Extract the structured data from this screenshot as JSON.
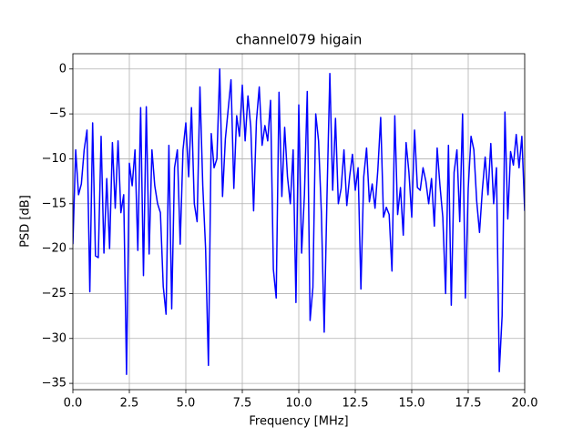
{
  "chart_data": {
    "type": "line",
    "title": "channel079 higain",
    "xlabel": "Frequency [MHz]",
    "ylabel": "PSD [dB]",
    "x": [
      0,
      0.125,
      0.25,
      0.375,
      0.5,
      0.625,
      0.75,
      0.875,
      1,
      1.125,
      1.25,
      1.375,
      1.5,
      1.625,
      1.75,
      1.875,
      2,
      2.125,
      2.25,
      2.375,
      2.5,
      2.625,
      2.75,
      2.875,
      3,
      3.125,
      3.25,
      3.375,
      3.5,
      3.625,
      3.75,
      3.875,
      4,
      4.125,
      4.25,
      4.375,
      4.5,
      4.625,
      4.75,
      4.875,
      5,
      5.125,
      5.25,
      5.375,
      5.5,
      5.625,
      5.75,
      5.875,
      6,
      6.125,
      6.25,
      6.375,
      6.5,
      6.625,
      6.75,
      6.875,
      7,
      7.125,
      7.25,
      7.375,
      7.5,
      7.625,
      7.75,
      7.875,
      8,
      8.125,
      8.25,
      8.375,
      8.5,
      8.625,
      8.75,
      8.875,
      9,
      9.125,
      9.25,
      9.375,
      9.5,
      9.625,
      9.75,
      9.875,
      10,
      10.125,
      10.25,
      10.375,
      10.5,
      10.625,
      10.75,
      10.875,
      11,
      11.125,
      11.25,
      11.375,
      11.5,
      11.625,
      11.75,
      11.875,
      12,
      12.125,
      12.25,
      12.375,
      12.5,
      12.625,
      12.75,
      12.875,
      13,
      13.125,
      13.25,
      13.375,
      13.5,
      13.625,
      13.75,
      13.875,
      14,
      14.125,
      14.25,
      14.375,
      14.5,
      14.625,
      14.75,
      14.875,
      15,
      15.125,
      15.25,
      15.375,
      15.5,
      15.625,
      15.75,
      15.875,
      16,
      16.125,
      16.25,
      16.375,
      16.5,
      16.625,
      16.75,
      16.875,
      17,
      17.125,
      17.25,
      17.375,
      17.5,
      17.625,
      17.75,
      17.875,
      18,
      18.125,
      18.25,
      18.375,
      18.5,
      18.625,
      18.75,
      18.875,
      19,
      19.125,
      19.25,
      19.375,
      19.5,
      19.625,
      19.75,
      19.875,
      20
    ],
    "series": [
      {
        "name": "channel079",
        "color": "#0000ff",
        "values": [
          -19.5,
          -9,
          -14,
          -12.8,
          -9,
          -6.8,
          -24.8,
          -6,
          -20.8,
          -21,
          -7.5,
          -20.5,
          -12.2,
          -20,
          -8.2,
          -15.5,
          -8,
          -16,
          -14,
          -34,
          -10.5,
          -13,
          -9,
          -20.2,
          -4.3,
          -23,
          -4.2,
          -20.6,
          -9,
          -13,
          -15,
          -16,
          -24.2,
          -27.3,
          -8.5,
          -26.7,
          -11,
          -9,
          -19.5,
          -9,
          -6,
          -12,
          -4.3,
          -15,
          -17,
          -2,
          -13,
          -20,
          -33,
          -7.2,
          -11,
          -10,
          0,
          -14.2,
          -7.8,
          -4.5,
          -1.2,
          -13.3,
          -5.2,
          -7.5,
          -1.8,
          -8,
          -3,
          -6.5,
          -15.8,
          -5.8,
          -2,
          -8.5,
          -6.3,
          -8,
          -3.5,
          -22.3,
          -25.5,
          -2.6,
          -14.2,
          -6.5,
          -12,
          -15,
          -9,
          -26,
          -4,
          -20.5,
          -14,
          -2.5,
          -28,
          -24.3,
          -5,
          -8,
          -16,
          -29.3,
          -14,
          -0.5,
          -13.5,
          -5.5,
          -15,
          -13.3,
          -9,
          -15.2,
          -12,
          -9.5,
          -13.5,
          -11,
          -24.5,
          -12,
          -8.8,
          -14.8,
          -12.8,
          -15.5,
          -11.2,
          -5.4,
          -16.5,
          -15.4,
          -16.2,
          -22.5,
          -5.2,
          -16.2,
          -13.2,
          -18.5,
          -8.2,
          -11.5,
          -16.5,
          -6.8,
          -13.2,
          -13.5,
          -11,
          -12.5,
          -15,
          -12.2,
          -17.5,
          -8.8,
          -13,
          -16.5,
          -25,
          -8.5,
          -26.3,
          -11.5,
          -9,
          -17,
          -5,
          -25.5,
          -13.3,
          -7.5,
          -9,
          -14.7,
          -18.2,
          -13.5,
          -9.8,
          -14,
          -8.3,
          -15,
          -11,
          -33.7,
          -27.5,
          -4.8,
          -16.7,
          -9.2,
          -10.7,
          -7.3,
          -11,
          -7.5,
          -15.8
        ]
      }
    ],
    "xlim": [
      0,
      20
    ],
    "ylim": [
      -35.7,
      1.7
    ],
    "xticks": [
      {
        "value": 0,
        "label": "0.0"
      },
      2.5,
      {
        "value": 5,
        "label": "5.0"
      },
      7.5,
      {
        "value": 10,
        "label": "10.0"
      },
      12.5,
      {
        "value": 15,
        "label": "15.0"
      },
      17.5,
      {
        "value": 20,
        "label": "20.0"
      }
    ],
    "yticks": [
      {
        "value": -35,
        "label": "−35"
      },
      {
        "value": -30,
        "label": "−30"
      },
      {
        "value": -25,
        "label": "−25"
      },
      {
        "value": -20,
        "label": "−20"
      },
      {
        "value": -15,
        "label": "−15"
      },
      {
        "value": -10,
        "label": "−10"
      },
      {
        "value": -5,
        "label": "−5"
      },
      0
    ],
    "grid": true
  }
}
